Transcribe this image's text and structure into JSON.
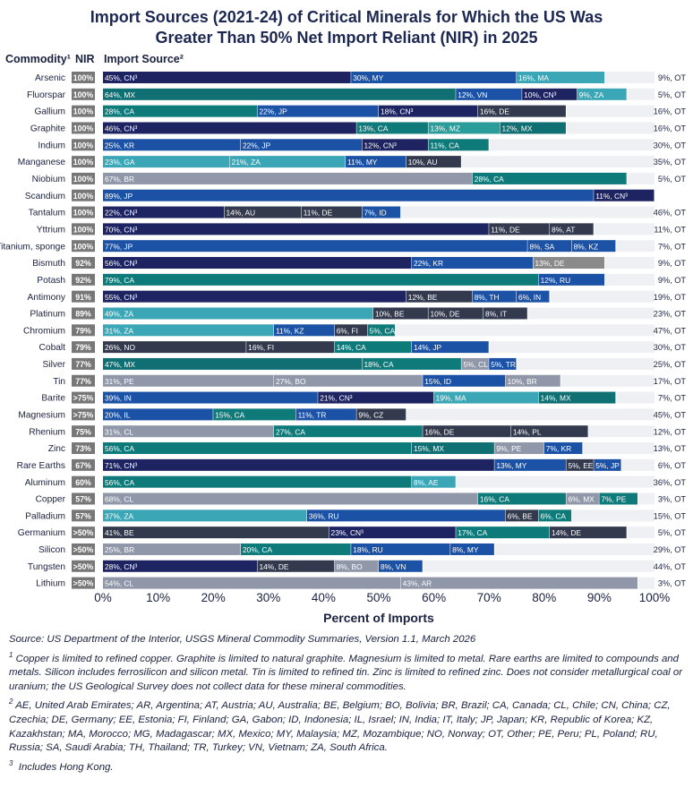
{
  "title": {
    "line1": "Import Sources (2021-24) of Critical Minerals for Which the US Was",
    "line2": "Greater Than 50% Net Import Reliant (NIR) in 2025"
  },
  "chart_data": {
    "type": "bar",
    "orientation": "horizontal-stacked",
    "xlabel": "Percent of Imports",
    "xlim": [
      0,
      100
    ],
    "xticks": [
      "0%",
      "10%",
      "20%",
      "30%",
      "40%",
      "50%",
      "60%",
      "70%",
      "80%",
      "90%",
      "100%"
    ],
    "col_headers": {
      "commodity": "Commodity¹",
      "nir": "NIR",
      "import": "Import Source²"
    },
    "colors": {
      "CN": "#1e2461",
      "MX": "#0f6f73",
      "CA": "#0f7a7a",
      "RU": "#1c52a5",
      "MY": "#1c52a5",
      "VN": "#1c52a5",
      "ZA": "#3aa6b6",
      "MA": "#3aa6b6",
      "BR": "#8f97a8",
      "CL": "#8f97a8",
      "DE": "#333a4e",
      "JP": "#1c52a5",
      "KR": "#1c52a5",
      "OT_bg": "#eef0f3",
      "nir_bg": "#777777"
    },
    "rows": [
      {
        "name": "Arsenic",
        "nir": "100%",
        "other": "9%, OT",
        "segs": [
          {
            "v": 45,
            "label": "45%, CN³",
            "c": "#1e2461"
          },
          {
            "v": 30,
            "label": "30%, MY",
            "c": "#1c52a5"
          },
          {
            "v": 16,
            "label": "16%, MA",
            "c": "#3aa6b6"
          }
        ]
      },
      {
        "name": "Fluorspar",
        "nir": "100%",
        "other": "5%, OT",
        "segs": [
          {
            "v": 64,
            "label": "64%, MX",
            "c": "#0f6f73"
          },
          {
            "v": 12,
            "label": "12%, VN",
            "c": "#1c52a5"
          },
          {
            "v": 10,
            "label": "10%, CN³",
            "c": "#1e2461"
          },
          {
            "v": 9,
            "label": "9%, ZA",
            "c": "#3aa6b6"
          }
        ]
      },
      {
        "name": "Gallium",
        "nir": "100%",
        "other": "16%, OT",
        "segs": [
          {
            "v": 28,
            "label": "28%, CA",
            "c": "#0f7a7a"
          },
          {
            "v": 22,
            "label": "22%, JP",
            "c": "#1c52a5"
          },
          {
            "v": 18,
            "label": "18%, CN³",
            "c": "#1e2461"
          },
          {
            "v": 16,
            "label": "16%, DE",
            "c": "#333a4e"
          }
        ]
      },
      {
        "name": "Graphite",
        "nir": "100%",
        "other": "16%, OT",
        "segs": [
          {
            "v": 46,
            "label": "46%, CN³",
            "c": "#1e2461"
          },
          {
            "v": 13,
            "label": "13%, CA",
            "c": "#0f7a7a"
          },
          {
            "v": 13,
            "label": "13%, MZ",
            "c": "#2a9d9a"
          },
          {
            "v": 12,
            "label": "12%, MX",
            "c": "#0f6f73"
          }
        ]
      },
      {
        "name": "Indium",
        "nir": "100%",
        "other": "30%, OT",
        "segs": [
          {
            "v": 25,
            "label": "25%, KR",
            "c": "#1c52a5"
          },
          {
            "v": 22,
            "label": "22%, JP",
            "c": "#1c52a5"
          },
          {
            "v": 12,
            "label": "12%, CN³",
            "c": "#1e2461"
          },
          {
            "v": 11,
            "label": "11%, CA",
            "c": "#0f7a7a"
          }
        ]
      },
      {
        "name": "Manganese",
        "nir": "100%",
        "other": "35%, OT",
        "segs": [
          {
            "v": 23,
            "label": "23%, GA",
            "c": "#3aa6b6"
          },
          {
            "v": 21,
            "label": "21%, ZA",
            "c": "#3aa6b6"
          },
          {
            "v": 11,
            "label": "11%, MY",
            "c": "#1c52a5"
          },
          {
            "v": 10,
            "label": "10%, AU",
            "c": "#333a4e"
          }
        ]
      },
      {
        "name": "Niobium",
        "nir": "100%",
        "other": "5%, OT",
        "segs": [
          {
            "v": 67,
            "label": "67%, BR",
            "c": "#8f97a8"
          },
          {
            "v": 28,
            "label": "28%, CA",
            "c": "#0f7a7a"
          }
        ]
      },
      {
        "name": "Scandium",
        "nir": "100%",
        "other": "",
        "segs": [
          {
            "v": 89,
            "label": "89%, JP",
            "c": "#1c52a5"
          },
          {
            "v": 11,
            "label": "11%, CN³",
            "c": "#1e2461"
          }
        ]
      },
      {
        "name": "Tantalum",
        "nir": "100%",
        "other": "46%, OT",
        "segs": [
          {
            "v": 22,
            "label": "22%, CN³",
            "c": "#1e2461"
          },
          {
            "v": 14,
            "label": "14%, AU",
            "c": "#333a4e"
          },
          {
            "v": 11,
            "label": "11%, DE",
            "c": "#333a4e"
          },
          {
            "v": 7,
            "label": "7%, ID",
            "c": "#1c52a5"
          }
        ]
      },
      {
        "name": "Yttrium",
        "nir": "100%",
        "other": "11%, OT",
        "segs": [
          {
            "v": 70,
            "label": "70%, CN³",
            "c": "#1e2461"
          },
          {
            "v": 11,
            "label": "11%, DE",
            "c": "#333a4e"
          },
          {
            "v": 8,
            "label": "8%, AT",
            "c": "#333a4e"
          }
        ]
      },
      {
        "name": "Titanium, sponge",
        "nir": "100%",
        "other": "7%, OT",
        "segs": [
          {
            "v": 77,
            "label": "77%, JP",
            "c": "#1c52a5"
          },
          {
            "v": 8,
            "label": "8%, SA",
            "c": "#1c52a5"
          },
          {
            "v": 8,
            "label": "8%, KZ",
            "c": "#1c52a5"
          }
        ]
      },
      {
        "name": "Bismuth",
        "nir": "92%",
        "other": "9%, OT",
        "segs": [
          {
            "v": 56,
            "label": "56%, CN³",
            "c": "#1e2461"
          },
          {
            "v": 22,
            "label": "22%, KR",
            "c": "#1c52a5"
          },
          {
            "v": 13,
            "label": "13%, DE",
            "c": "#8a8a8a"
          }
        ]
      },
      {
        "name": "Potash",
        "nir": "92%",
        "other": "9%, OT",
        "segs": [
          {
            "v": 79,
            "label": "79%, CA",
            "c": "#0f7a7a"
          },
          {
            "v": 12,
            "label": "12%, RU",
            "c": "#1c52a5"
          }
        ]
      },
      {
        "name": "Antimony",
        "nir": "91%",
        "other": "19%, OT",
        "segs": [
          {
            "v": 55,
            "label": "55%, CN³",
            "c": "#1e2461"
          },
          {
            "v": 12,
            "label": "12%, BE",
            "c": "#333a4e"
          },
          {
            "v": 8,
            "label": "8%, TH",
            "c": "#1c52a5"
          },
          {
            "v": 6,
            "label": "6%, IN",
            "c": "#1c52a5"
          }
        ]
      },
      {
        "name": "Platinum",
        "nir": "89%",
        "other": "23%, OT",
        "segs": [
          {
            "v": 49,
            "label": "49%, ZA",
            "c": "#3aa6b6"
          },
          {
            "v": 10,
            "label": "10%, BE",
            "c": "#333a4e"
          },
          {
            "v": 10,
            "label": "10%, DE",
            "c": "#333a4e"
          },
          {
            "v": 8,
            "label": "8%, IT",
            "c": "#333a4e"
          }
        ]
      },
      {
        "name": "Chromium",
        "nir": "79%",
        "other": "47%, OT",
        "segs": [
          {
            "v": 31,
            "label": "31%, ZA",
            "c": "#3aa6b6"
          },
          {
            "v": 11,
            "label": "11%, KZ",
            "c": "#1c52a5"
          },
          {
            "v": 6,
            "label": "6%, FI",
            "c": "#333a4e"
          },
          {
            "v": 5,
            "label": "5%, CA",
            "c": "#0f7a7a"
          }
        ]
      },
      {
        "name": "Cobalt",
        "nir": "79%",
        "other": "30%, OT",
        "segs": [
          {
            "v": 26,
            "label": "26%, NO",
            "c": "#333a4e"
          },
          {
            "v": 16,
            "label": "16%, FI",
            "c": "#333a4e"
          },
          {
            "v": 14,
            "label": "14%, CA",
            "c": "#0f7a7a"
          },
          {
            "v": 14,
            "label": "14%, JP",
            "c": "#1c52a5"
          }
        ]
      },
      {
        "name": "Silver",
        "nir": "77%",
        "other": "25%, OT",
        "segs": [
          {
            "v": 47,
            "label": "47%, MX",
            "c": "#0f6f73"
          },
          {
            "v": 18,
            "label": "18%, CA",
            "c": "#0f7a7a"
          },
          {
            "v": 5,
            "label": "5%, CL",
            "c": "#8f97a8"
          },
          {
            "v": 5,
            "label": "5%, TR",
            "c": "#1c52a5"
          }
        ]
      },
      {
        "name": "Tin",
        "nir": "77%",
        "other": "17%, OT",
        "segs": [
          {
            "v": 31,
            "label": "31%, PE",
            "c": "#8f97a8"
          },
          {
            "v": 27,
            "label": "27%, BO",
            "c": "#8f97a8"
          },
          {
            "v": 15,
            "label": "15%, ID",
            "c": "#1c52a5"
          },
          {
            "v": 10,
            "label": "10%, BR",
            "c": "#8f97a8"
          }
        ]
      },
      {
        "name": "Barite",
        "nir": ">75%",
        "other": "7%, OT",
        "segs": [
          {
            "v": 39,
            "label": "39%, IN",
            "c": "#1c52a5"
          },
          {
            "v": 21,
            "label": "21%, CN³",
            "c": "#1e2461"
          },
          {
            "v": 19,
            "label": "19%, MA",
            "c": "#3aa6b6"
          },
          {
            "v": 14,
            "label": "14%, MX",
            "c": "#0f6f73"
          }
        ]
      },
      {
        "name": "Magnesium",
        "nir": ">75%",
        "other": "45%, OT",
        "segs": [
          {
            "v": 20,
            "label": "20%, IL",
            "c": "#1c52a5"
          },
          {
            "v": 15,
            "label": "15%, CA",
            "c": "#0f7a7a"
          },
          {
            "v": 11,
            "label": "11%, TR",
            "c": "#1c52a5"
          },
          {
            "v": 9,
            "label": "9%, CZ",
            "c": "#333a4e"
          }
        ]
      },
      {
        "name": "Rhenium",
        "nir": "75%",
        "other": "12%, OT",
        "segs": [
          {
            "v": 31,
            "label": "31%, CL",
            "c": "#8f97a8"
          },
          {
            "v": 27,
            "label": "27%, CA",
            "c": "#0f7a7a"
          },
          {
            "v": 16,
            "label": "16%, DE",
            "c": "#333a4e"
          },
          {
            "v": 14,
            "label": "14%, PL",
            "c": "#333a4e"
          }
        ]
      },
      {
        "name": "Zinc",
        "nir": "73%",
        "other": "13%, OT",
        "segs": [
          {
            "v": 56,
            "label": "56%, CA",
            "c": "#0f7a7a"
          },
          {
            "v": 15,
            "label": "15%, MX",
            "c": "#0f6f73"
          },
          {
            "v": 9,
            "label": "9%, PE",
            "c": "#8f97a8"
          },
          {
            "v": 7,
            "label": "7%, KR",
            "c": "#1c52a5"
          }
        ]
      },
      {
        "name": "Rare Earths",
        "nir": "67%",
        "other": "6%, OT",
        "segs": [
          {
            "v": 71,
            "label": "71%, CN³",
            "c": "#1e2461"
          },
          {
            "v": 13,
            "label": "13%, MY",
            "c": "#1c52a5"
          },
          {
            "v": 5,
            "label": "5%, EE",
            "c": "#333a4e"
          },
          {
            "v": 5,
            "label": "5%, JP",
            "c": "#1c52a5"
          }
        ]
      },
      {
        "name": "Aluminum",
        "nir": "60%",
        "other": "36%, OT",
        "segs": [
          {
            "v": 56,
            "label": "56%, CA",
            "c": "#0f7a7a"
          },
          {
            "v": 8,
            "label": "8%, AE",
            "c": "#3aa6b6"
          }
        ]
      },
      {
        "name": "Copper",
        "nir": "57%",
        "other": "3%, OT",
        "segs": [
          {
            "v": 68,
            "label": "68%, CL",
            "c": "#8f97a8"
          },
          {
            "v": 16,
            "label": "16%, CA",
            "c": "#0f7a7a"
          },
          {
            "v": 6,
            "label": "6%, MX",
            "c": "#8f97a8"
          },
          {
            "v": 7,
            "label": "7%, PE",
            "c": "#0f7a7a"
          }
        ]
      },
      {
        "name": "Palladium",
        "nir": "57%",
        "other": "15%, OT",
        "segs": [
          {
            "v": 37,
            "label": "37%, ZA",
            "c": "#3aa6b6"
          },
          {
            "v": 36,
            "label": "36%, RU",
            "c": "#1c52a5"
          },
          {
            "v": 6,
            "label": "6%, BE",
            "c": "#333a4e"
          },
          {
            "v": 6,
            "label": "6%, CA",
            "c": "#0f7a7a"
          }
        ]
      },
      {
        "name": "Germanium",
        "nir": ">50%",
        "other": "5%, OT",
        "segs": [
          {
            "v": 41,
            "label": "41%, BE",
            "c": "#333a4e"
          },
          {
            "v": 23,
            "label": "23%, CN³",
            "c": "#1e2461"
          },
          {
            "v": 17,
            "label": "17%, CA",
            "c": "#0f7a7a"
          },
          {
            "v": 14,
            "label": "14%, DE",
            "c": "#333a4e"
          }
        ]
      },
      {
        "name": "Silicon",
        "nir": ">50%",
        "other": "29%, OT",
        "segs": [
          {
            "v": 25,
            "label": "25%, BR",
            "c": "#8f97a8"
          },
          {
            "v": 20,
            "label": "20%, CA",
            "c": "#0f7a7a"
          },
          {
            "v": 18,
            "label": "18%, RU",
            "c": "#1c52a5"
          },
          {
            "v": 8,
            "label": "8%, MY",
            "c": "#1c52a5"
          }
        ]
      },
      {
        "name": "Tungsten",
        "nir": ">50%",
        "other": "44%, OT",
        "segs": [
          {
            "v": 28,
            "label": "28%, CN³",
            "c": "#1e2461"
          },
          {
            "v": 14,
            "label": "14%, DE",
            "c": "#333a4e"
          },
          {
            "v": 8,
            "label": "8%, BO",
            "c": "#8f97a8"
          },
          {
            "v": 8,
            "label": "8%, VN",
            "c": "#1c52a5"
          }
        ]
      },
      {
        "name": "Lithium",
        "nir": ">50%",
        "other": "3%, OT",
        "segs": [
          {
            "v": 54,
            "label": "54%, CL",
            "c": "#8f97a8"
          },
          {
            "v": 43,
            "label": "43%, AR",
            "c": "#8f97a8"
          }
        ]
      }
    ]
  },
  "notes": {
    "source": "Source: US Department of the Interior, USGS Mineral Commodity Summaries, Version 1.1, March 2026",
    "fn1_mark": "1",
    "fn1": "Copper is limited to refined copper. Graphite is limited to natural graphite. Magnesium is limited to metal. Rare earths are limited to compounds and metals. Silicon includes ferrosilicon and silicon metal. Tin is limited to refined tin. Zinc is limited to refined zinc. Does not consider metallurgical coal or uranium; the US Geological Survey does not collect data for these mineral commodities.",
    "fn2_mark": "2",
    "fn2": "AE, United Arab Emirates; AR, Argentina; AT, Austria; AU, Australia; BE, Belgium; BO, Bolivia; BR, Brazil; CA, Canada; CL, Chile; CN, China; CZ, Czechia; DE, Germany; EE, Estonia; FI, Finland; GA, Gabon; ID, Indonesia; IL, Israel; IN, India; IT, Italy; JP, Japan; KR, Republic of Korea; KZ, Kazakhstan; MA, Morocco; MG, Madagascar; MX, Mexico; MY, Malaysia; MZ, Mozambique; NO, Norway; OT, Other; PE, Peru; PL, Poland; RU, Russia; SA, Saudi Arabia; TH, Thailand; TR, Turkey; VN, Vietnam; ZA, South Africa.",
    "fn3_mark": "3",
    "fn3": "Includes Hong Kong."
  }
}
